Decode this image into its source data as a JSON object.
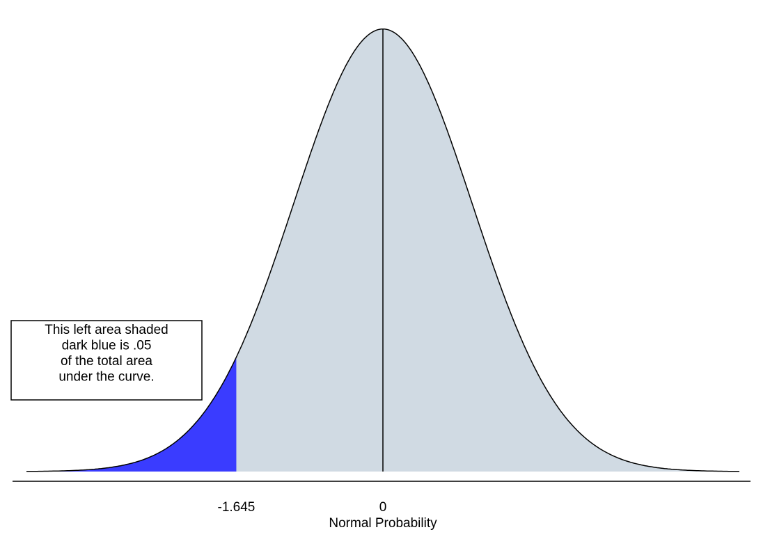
{
  "chart_data": {
    "type": "normal",
    "xlabel": "Normal Probability",
    "xlim": [
      -4,
      4
    ],
    "ylim": [
      0,
      0.4
    ],
    "xticks": [
      -1.645,
      0
    ],
    "fill_color": "#d0dae3",
    "shade_to": -1.645,
    "shade_color": "#3a3cff",
    "annotation": [
      "This left area shaded",
      "dark blue is .05",
      "of the total area",
      "under the curve."
    ]
  }
}
